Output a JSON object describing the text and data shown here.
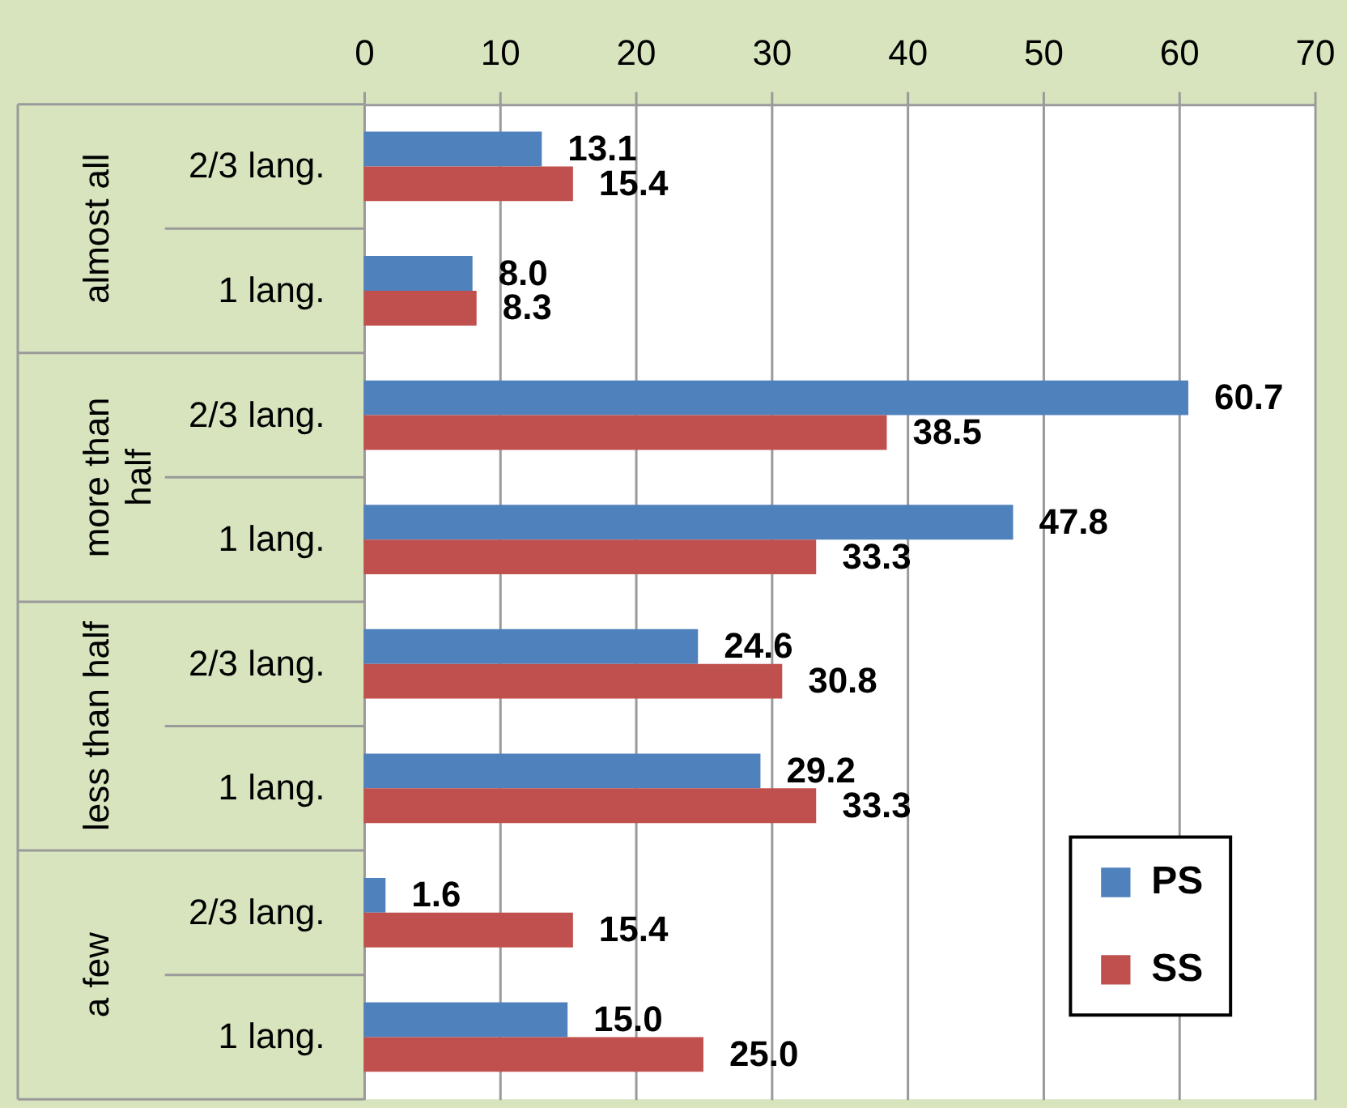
{
  "chart_data": {
    "type": "bar",
    "orientation": "horizontal",
    "categories": [
      "2/3 lang.",
      "1 lang.",
      "2/3 lang.",
      "1 lang.",
      "2/3 lang.",
      "1 lang.",
      "2/3 lang.",
      "1 lang."
    ],
    "series": [
      {
        "name": "PS",
        "color": "#4f81bd",
        "values": [
          13.1,
          8.0,
          60.7,
          47.8,
          24.6,
          29.2,
          1.6,
          15.0
        ],
        "value_labels": [
          "13.1",
          "8.0",
          "60.7",
          "47.8",
          "24.6",
          "29.2",
          "1.6",
          "15.0"
        ]
      },
      {
        "name": "SS",
        "color": "#c0504d",
        "values": [
          15.4,
          8.3,
          38.5,
          33.3,
          30.8,
          33.3,
          15.4,
          25.0
        ],
        "value_labels": [
          "15.4",
          "8.3",
          "38.5",
          "33.3",
          "30.8",
          "33.3",
          "15.4",
          "25.0"
        ]
      }
    ],
    "annotations": [
      "almost all",
      "more than half",
      "less than half",
      "a few"
    ],
    "xlim": [
      0,
      70
    ],
    "xticks": [
      0,
      10,
      20,
      30,
      40,
      50,
      60,
      70
    ],
    "grid": "x",
    "legend": "bottom right"
  }
}
